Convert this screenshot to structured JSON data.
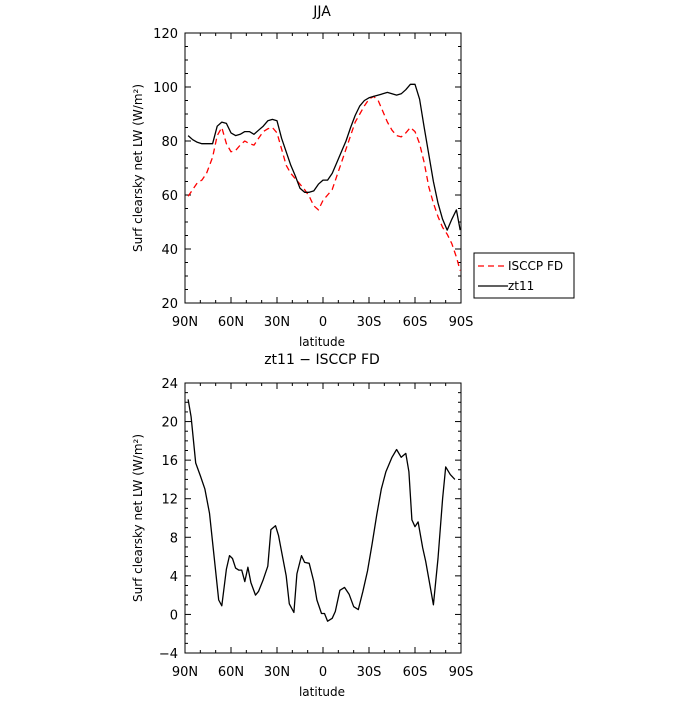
{
  "chart_data": [
    {
      "type": "line",
      "title": "JJA",
      "xlabel": "latitude",
      "ylabel": "Surf clearsky net LW (W/m²)",
      "xlim": [
        90,
        -90
      ],
      "ylim": [
        20,
        120
      ],
      "xticks": [
        90,
        60,
        30,
        0,
        -30,
        -60,
        -90
      ],
      "xtick_labels": [
        "90N",
        "60N",
        "30N",
        "0",
        "30S",
        "60S",
        "90S"
      ],
      "yticks": [
        20,
        40,
        60,
        80,
        100,
        120
      ],
      "ytick_labels": [
        "20",
        "40",
        "60",
        "80",
        "100",
        "120"
      ],
      "legend": "outside-right",
      "series": [
        {
          "name": "ISCCP FD",
          "color": "#ff0000",
          "dash": "dashed",
          "points": [
            [
              88,
              59.5
            ],
            [
              85,
              62
            ],
            [
              82,
              64.5
            ],
            [
              79,
              65.5
            ],
            [
              76,
              68
            ],
            [
              72,
              74
            ],
            [
              69,
              82
            ],
            [
              66,
              85
            ],
            [
              63,
              79
            ],
            [
              60,
              76
            ],
            [
              57,
              76.5
            ],
            [
              54,
              78.5
            ],
            [
              51,
              80
            ],
            [
              48,
              79
            ],
            [
              45,
              78.5
            ],
            [
              42,
              81
            ],
            [
              39,
              83.5
            ],
            [
              36,
              84.5
            ],
            [
              33,
              85
            ],
            [
              30,
              83
            ],
            [
              27,
              77
            ],
            [
              24,
              71
            ],
            [
              21,
              68
            ],
            [
              18,
              66
            ],
            [
              15,
              64
            ],
            [
              12,
              62
            ],
            [
              9,
              59.5
            ],
            [
              6,
              56
            ],
            [
              3,
              54.5
            ],
            [
              0,
              58
            ],
            [
              -3,
              60
            ],
            [
              -6,
              62
            ],
            [
              -9,
              67
            ],
            [
              -12,
              72
            ],
            [
              -15,
              77
            ],
            [
              -18,
              82
            ],
            [
              -21,
              87
            ],
            [
              -24,
              90
            ],
            [
              -27,
              93
            ],
            [
              -30,
              95.5
            ],
            [
              -33,
              96.5
            ],
            [
              -36,
              95
            ],
            [
              -39,
              91
            ],
            [
              -42,
              87
            ],
            [
              -45,
              84
            ],
            [
              -48,
              82
            ],
            [
              -51,
              81.5
            ],
            [
              -54,
              83
            ],
            [
              -57,
              85
            ],
            [
              -60,
              83.5
            ],
            [
              -63,
              79
            ],
            [
              -66,
              72
            ],
            [
              -69,
              63
            ],
            [
              -72,
              57
            ],
            [
              -75,
              52
            ],
            [
              -78,
              48
            ],
            [
              -81,
              45.5
            ],
            [
              -84,
              42
            ],
            [
              -87,
              37
            ],
            [
              -89.5,
              32
            ]
          ]
        },
        {
          "name": "zt11",
          "color": "#000000",
          "dash": "solid",
          "points": [
            [
              88,
              82
            ],
            [
              85,
              80.5
            ],
            [
              82,
              79.5
            ],
            [
              79,
              79
            ],
            [
              76,
              79
            ],
            [
              72,
              79
            ],
            [
              69,
              85.5
            ],
            [
              66,
              87
            ],
            [
              63,
              86.5
            ],
            [
              60,
              83
            ],
            [
              57,
              82
            ],
            [
              54,
              82.5
            ],
            [
              51,
              83.5
            ],
            [
              48,
              83.5
            ],
            [
              45,
              82.5
            ],
            [
              42,
              84
            ],
            [
              39,
              85.5
            ],
            [
              36,
              87.5
            ],
            [
              33,
              88
            ],
            [
              30,
              87.5
            ],
            [
              27,
              81
            ],
            [
              24,
              76
            ],
            [
              21,
              71
            ],
            [
              18,
              67
            ],
            [
              15,
              62.5
            ],
            [
              12,
              61
            ],
            [
              9,
              61
            ],
            [
              6,
              61.5
            ],
            [
              3,
              64
            ],
            [
              0,
              65.5
            ],
            [
              -3,
              65.5
            ],
            [
              -6,
              68
            ],
            [
              -9,
              72
            ],
            [
              -12,
              76
            ],
            [
              -15,
              80
            ],
            [
              -18,
              85
            ],
            [
              -21,
              89.5
            ],
            [
              -24,
              93
            ],
            [
              -27,
              95
            ],
            [
              -30,
              96
            ],
            [
              -33,
              96.5
            ],
            [
              -36,
              97
            ],
            [
              -39,
              97.5
            ],
            [
              -42,
              98
            ],
            [
              -45,
              97.5
            ],
            [
              -48,
              97
            ],
            [
              -51,
              97.5
            ],
            [
              -54,
              99
            ],
            [
              -57,
              101
            ],
            [
              -60,
              101
            ],
            [
              -63,
              95.5
            ],
            [
              -66,
              85
            ],
            [
              -69,
              75
            ],
            [
              -72,
              65
            ],
            [
              -75,
              57
            ],
            [
              -78,
              51
            ],
            [
              -81,
              47
            ],
            [
              -84,
              51
            ],
            [
              -87,
              54.5
            ],
            [
              -89.5,
              47
            ]
          ]
        }
      ]
    },
    {
      "type": "line",
      "title": "zt11 − ISCCP FD",
      "xlabel": "latitude",
      "ylabel": "Surf clearsky net LW (W/m²)",
      "xlim": [
        90,
        -90
      ],
      "ylim": [
        -4,
        24
      ],
      "xticks": [
        90,
        60,
        30,
        0,
        -30,
        -60,
        -90
      ],
      "xtick_labels": [
        "90N",
        "60N",
        "30N",
        "0",
        "30S",
        "60S",
        "90S"
      ],
      "yticks": [
        -4,
        0,
        4,
        8,
        12,
        16,
        20,
        24
      ],
      "ytick_labels": [
        "−4",
        "0",
        "4",
        "8",
        "12",
        "16",
        "20",
        "24"
      ],
      "series": [
        {
          "color": "#000000",
          "dash": "solid",
          "points": [
            [
              88,
              22.3
            ],
            [
              86,
              20.5
            ],
            [
              83,
              15.7
            ],
            [
              80,
              14.4
            ],
            [
              77,
              13
            ],
            [
              74,
              10.5
            ],
            [
              71,
              6
            ],
            [
              68,
              1.5
            ],
            [
              66,
              0.9
            ],
            [
              63,
              4.7
            ],
            [
              61,
              6.1
            ],
            [
              59,
              5.8
            ],
            [
              57,
              4.8
            ],
            [
              55,
              4.6
            ],
            [
              53,
              4.6
            ],
            [
              51,
              3.4
            ],
            [
              49,
              4.9
            ],
            [
              47,
              3.3
            ],
            [
              44,
              2
            ],
            [
              42,
              2.4
            ],
            [
              39,
              3.6
            ],
            [
              36,
              5
            ],
            [
              34,
              8.8
            ],
            [
              31,
              9.2
            ],
            [
              29,
              8.2
            ],
            [
              27,
              6.5
            ],
            [
              24,
              4
            ],
            [
              22,
              1.1
            ],
            [
              19,
              0.2
            ],
            [
              17,
              4.2
            ],
            [
              14,
              6.1
            ],
            [
              12,
              5.4
            ],
            [
              9,
              5.3
            ],
            [
              6,
              3.4
            ],
            [
              4,
              1.5
            ],
            [
              1,
              0.1
            ],
            [
              -1,
              0.1
            ],
            [
              -3,
              -0.7
            ],
            [
              -6,
              -0.4
            ],
            [
              -8,
              0.3
            ],
            [
              -11,
              2.5
            ],
            [
              -14,
              2.8
            ],
            [
              -17,
              2.1
            ],
            [
              -20,
              0.8
            ],
            [
              -23,
              0.5
            ],
            [
              -26,
              2.4
            ],
            [
              -29,
              4.5
            ],
            [
              -32,
              7.3
            ],
            [
              -35,
              10.3
            ],
            [
              -38,
              13
            ],
            [
              -41,
              14.8
            ],
            [
              -45,
              16.3
            ],
            [
              -48,
              17.1
            ],
            [
              -51,
              16.3
            ],
            [
              -54,
              16.7
            ],
            [
              -56,
              14.8
            ],
            [
              -58,
              9.8
            ],
            [
              -60,
              9.1
            ],
            [
              -62,
              9.6
            ],
            [
              -65,
              6.9
            ],
            [
              -67,
              5.5
            ],
            [
              -69,
              3.7
            ],
            [
              -72,
              1
            ],
            [
              -75,
              5.8
            ],
            [
              -78,
              12
            ],
            [
              -80,
              15.3
            ],
            [
              -83,
              14.5
            ],
            [
              -86,
              14
            ]
          ]
        }
      ]
    }
  ]
}
